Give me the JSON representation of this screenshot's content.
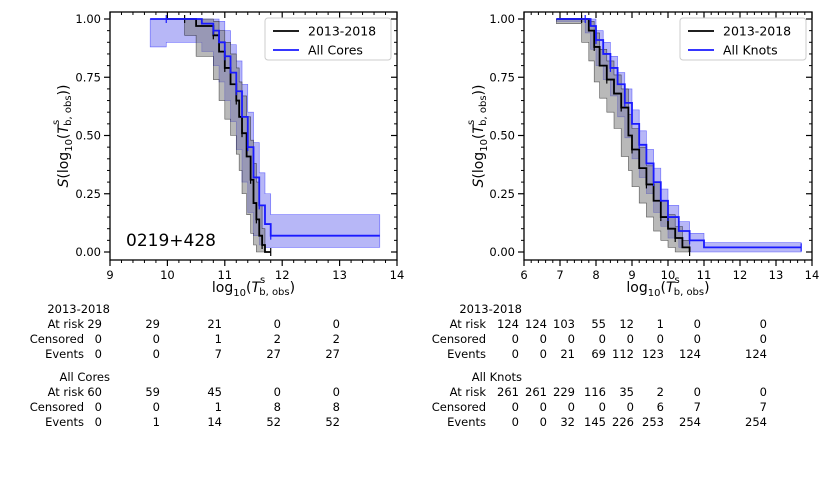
{
  "chart_data": [
    {
      "type": "line",
      "subtype": "survival-step",
      "annotation": "0219+428",
      "xlabel": "log10(Ts b,obs)",
      "ylabel": "S(log10(Ts b,obs))",
      "xlim": [
        9,
        14
      ],
      "ylim": [
        0,
        1
      ],
      "xticks": [
        "9",
        "10",
        "11",
        "12",
        "13",
        "14"
      ],
      "yticks": [
        "0.00",
        "0.25",
        "0.50",
        "0.75",
        "1.00"
      ],
      "legend_position": "top-right",
      "series": [
        {
          "name": "2013-2018",
          "color": "#000000",
          "band_color": "#808080",
          "x": [
            9.98,
            10.3,
            10.5,
            10.8,
            10.9,
            11.0,
            11.1,
            11.2,
            11.25,
            11.3,
            11.38,
            11.45,
            11.5,
            11.55,
            11.6,
            11.65,
            11.7,
            11.8
          ],
          "y": [
            1.0,
            1.0,
            0.97,
            0.93,
            0.86,
            0.79,
            0.72,
            0.65,
            0.58,
            0.51,
            0.41,
            0.31,
            0.21,
            0.14,
            0.07,
            0.03,
            0.0,
            0.0
          ],
          "lower": [
            1.0,
            1.0,
            0.93,
            0.84,
            0.74,
            0.65,
            0.57,
            0.5,
            0.42,
            0.35,
            0.25,
            0.16,
            0.08,
            0.03,
            0.0,
            0.0,
            0.0,
            0.0
          ],
          "upper": [
            1.0,
            1.0,
            1.0,
            0.99,
            0.95,
            0.9,
            0.85,
            0.79,
            0.73,
            0.67,
            0.58,
            0.48,
            0.38,
            0.3,
            0.2,
            0.1,
            0.0,
            0.0
          ]
        },
        {
          "name": "All Cores",
          "color": "#1a1aff",
          "band_color": "#6f6fef",
          "x": [
            9.7,
            9.98,
            10.6,
            10.8,
            10.9,
            11.0,
            11.1,
            11.2,
            11.3,
            11.4,
            11.5,
            11.6,
            11.7,
            11.8,
            13.7
          ],
          "y": [
            1.0,
            1.0,
            0.98,
            0.95,
            0.9,
            0.84,
            0.77,
            0.69,
            0.58,
            0.45,
            0.32,
            0.2,
            0.12,
            0.07,
            0.07
          ],
          "lower": [
            1.0,
            0.88,
            0.9,
            0.86,
            0.8,
            0.73,
            0.65,
            0.56,
            0.44,
            0.3,
            0.17,
            0.07,
            0.03,
            0.02,
            0.02
          ],
          "upper": [
            1.0,
            1.0,
            1.0,
            1.0,
            0.99,
            0.95,
            0.89,
            0.82,
            0.72,
            0.6,
            0.47,
            0.34,
            0.25,
            0.16,
            0.16
          ]
        }
      ],
      "risk_table": [
        {
          "group": "2013-2018",
          "rows": [
            {
              "label": "At risk",
              "values": [
                "29",
                "29",
                "21",
                "0",
                "0"
              ]
            },
            {
              "label": "Censored",
              "values": [
                "0",
                "0",
                "1",
                "2",
                "2"
              ]
            },
            {
              "label": "Events",
              "values": [
                "0",
                "0",
                "7",
                "27",
                "27"
              ]
            }
          ]
        },
        {
          "group": "All Cores",
          "rows": [
            {
              "label": "At risk",
              "values": [
                "60",
                "59",
                "45",
                "0",
                "0"
              ]
            },
            {
              "label": "Censored",
              "values": [
                "0",
                "0",
                "1",
                "8",
                "8"
              ]
            },
            {
              "label": "Events",
              "values": [
                "0",
                "1",
                "14",
                "52",
                "52"
              ]
            }
          ]
        }
      ]
    },
    {
      "type": "line",
      "subtype": "survival-step",
      "annotation": "",
      "xlabel": "log10(Ts b,obs)",
      "ylabel": "S(log10(Ts b,obs))",
      "xlim": [
        6,
        14
      ],
      "ylim": [
        0,
        1
      ],
      "xticks": [
        "6",
        "7",
        "8",
        "9",
        "10",
        "11",
        "12",
        "13",
        "14"
      ],
      "yticks": [
        "0.00",
        "0.25",
        "0.50",
        "0.75",
        "1.00"
      ],
      "legend_position": "top-right",
      "series": [
        {
          "name": "2013-2018",
          "color": "#000000",
          "band_color": "#808080",
          "x": [
            6.9,
            7.6,
            7.8,
            7.95,
            8.1,
            8.3,
            8.5,
            8.7,
            8.9,
            9.0,
            9.2,
            9.4,
            9.6,
            9.8,
            10.0,
            10.2,
            10.4,
            10.6
          ],
          "y": [
            1.0,
            1.0,
            0.95,
            0.88,
            0.8,
            0.74,
            0.68,
            0.62,
            0.5,
            0.44,
            0.36,
            0.29,
            0.22,
            0.15,
            0.1,
            0.06,
            0.02,
            0.0
          ],
          "lower": [
            1.0,
            0.98,
            0.9,
            0.82,
            0.73,
            0.66,
            0.6,
            0.53,
            0.41,
            0.35,
            0.28,
            0.21,
            0.15,
            0.09,
            0.05,
            0.02,
            0.0,
            0.0
          ],
          "upper": [
            1.0,
            1.0,
            0.99,
            0.94,
            0.87,
            0.82,
            0.76,
            0.7,
            0.59,
            0.53,
            0.45,
            0.37,
            0.3,
            0.22,
            0.16,
            0.11,
            0.05,
            0.0
          ]
        },
        {
          "name": "All Knots",
          "color": "#1a1aff",
          "band_color": "#6f6fef",
          "x": [
            6.9,
            7.7,
            7.85,
            8.0,
            8.2,
            8.4,
            8.6,
            8.8,
            9.0,
            9.2,
            9.4,
            9.6,
            9.8,
            10.0,
            10.3,
            10.6,
            11.0,
            13.7
          ],
          "y": [
            1.0,
            1.0,
            0.97,
            0.91,
            0.85,
            0.79,
            0.72,
            0.64,
            0.55,
            0.46,
            0.38,
            0.3,
            0.22,
            0.15,
            0.09,
            0.05,
            0.02,
            0.02
          ],
          "lower": [
            1.0,
            0.99,
            0.94,
            0.87,
            0.8,
            0.74,
            0.67,
            0.58,
            0.49,
            0.4,
            0.32,
            0.25,
            0.17,
            0.11,
            0.06,
            0.02,
            0.0,
            0.0
          ],
          "upper": [
            1.0,
            1.0,
            1.0,
            0.95,
            0.9,
            0.84,
            0.77,
            0.7,
            0.61,
            0.52,
            0.44,
            0.36,
            0.27,
            0.2,
            0.13,
            0.08,
            0.04,
            0.04
          ]
        }
      ],
      "risk_table": [
        {
          "group": "2013-2018",
          "rows": [
            {
              "label": "At risk",
              "values": [
                "124",
                "124",
                "103",
                "55",
                "12",
                "1",
                "0",
                "0"
              ]
            },
            {
              "label": "Censored",
              "values": [
                "0",
                "0",
                "0",
                "0",
                "0",
                "0",
                "0",
                "0"
              ]
            },
            {
              "label": "Events",
              "values": [
                "0",
                "0",
                "21",
                "69",
                "112",
                "123",
                "124",
                "124"
              ]
            }
          ]
        },
        {
          "group": "All Knots",
          "rows": [
            {
              "label": "At risk",
              "values": [
                "261",
                "261",
                "229",
                "116",
                "35",
                "2",
                "0",
                "0"
              ]
            },
            {
              "label": "Censored",
              "values": [
                "0",
                "0",
                "0",
                "0",
                "0",
                "6",
                "7",
                "7"
              ]
            },
            {
              "label": "Events",
              "values": [
                "0",
                "0",
                "32",
                "145",
                "226",
                "253",
                "254",
                "254"
              ]
            }
          ]
        }
      ]
    }
  ]
}
